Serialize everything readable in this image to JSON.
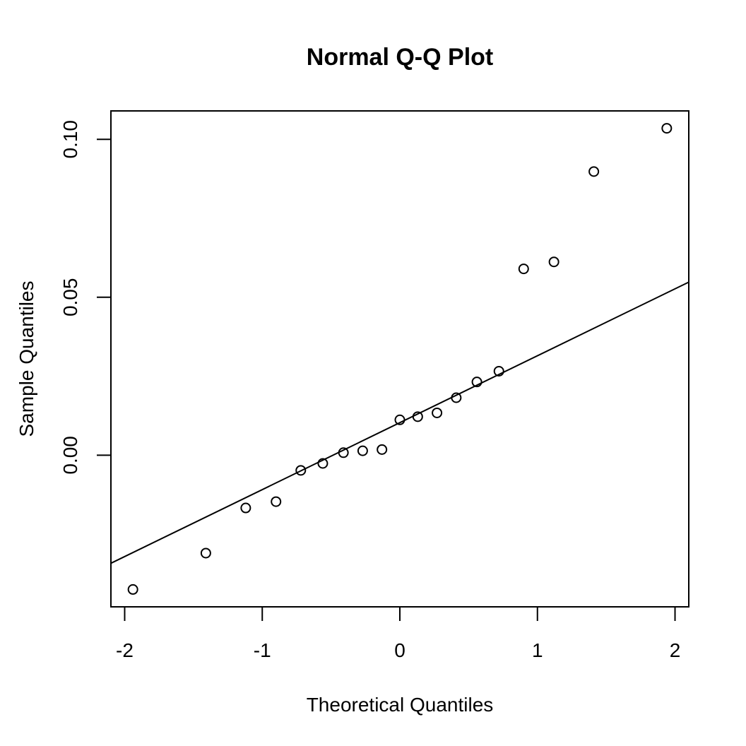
{
  "chart_data": {
    "type": "scatter",
    "title": "Normal Q-Q Plot",
    "xlabel": "Theoretical Quantiles",
    "ylabel": "Sample Quantiles",
    "xlim": [
      -2.1,
      2.1
    ],
    "ylim": [
      -0.048,
      0.109
    ],
    "x_ticks": [
      -2,
      -1,
      0,
      1,
      2
    ],
    "x_tick_labels": [
      "-2",
      "-1",
      "0",
      "1",
      "2"
    ],
    "y_ticks": [
      0.0,
      0.05,
      0.1
    ],
    "y_tick_labels": [
      "0.00",
      "0.05",
      "0.10"
    ],
    "grid": false,
    "legend": "none",
    "series": [
      {
        "points": [
          {
            "x": -1.94,
            "y": -0.0425
          },
          {
            "x": -1.41,
            "y": -0.031
          },
          {
            "x": -1.12,
            "y": -0.0167
          },
          {
            "x": -0.9,
            "y": -0.0147
          },
          {
            "x": -0.72,
            "y": -0.0048
          },
          {
            "x": -0.56,
            "y": -0.0026
          },
          {
            "x": -0.41,
            "y": 0.0008
          },
          {
            "x": -0.27,
            "y": 0.0014
          },
          {
            "x": -0.13,
            "y": 0.0018
          },
          {
            "x": 0.0,
            "y": 0.0112
          },
          {
            "x": 0.13,
            "y": 0.0122
          },
          {
            "x": 0.27,
            "y": 0.0134
          },
          {
            "x": 0.41,
            "y": 0.0182
          },
          {
            "x": 0.56,
            "y": 0.0232
          },
          {
            "x": 0.72,
            "y": 0.0266
          },
          {
            "x": 0.9,
            "y": 0.059
          },
          {
            "x": 1.12,
            "y": 0.0612
          },
          {
            "x": 1.41,
            "y": 0.0898
          },
          {
            "x": 1.94,
            "y": 0.1035
          }
        ]
      }
    ],
    "reference_line": {
      "x": [
        -2.1,
        2.1
      ],
      "y": [
        -0.0342,
        0.0548
      ]
    },
    "colors": {
      "points": "#000000",
      "line": "#000000",
      "axes": "#000000",
      "background": "#ffffff"
    }
  }
}
